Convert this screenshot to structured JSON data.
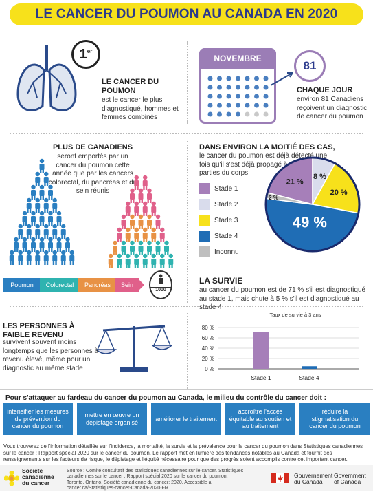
{
  "title": "LE CANCER DU POUMON AU CANADA EN 2020",
  "rank": {
    "number": "1",
    "sup": "er"
  },
  "rank_heading": "LE CANCER DU POUMON",
  "rank_text": "est le cancer le plus diagnostiqué, hommes et femmes combinés",
  "calendar": {
    "month": "NOVEMBRE",
    "count": "81"
  },
  "daily_heading": "CHAQUE JOUR",
  "daily_text": "environ 81 Canadiens reçoivent un diagnostic de cancer du poumon",
  "deaths_heading": "PLUS DE CANADIENS",
  "deaths_text": "seront emportés par un cancer du poumon cette année que par les cancers colorectal, du pancréas et du sein réunis",
  "compare_labels": [
    "Poumon",
    "Colorectal",
    "Pancréas",
    "Sein"
  ],
  "person_scale": "1000",
  "stage_heading": "DANS ENVIRON LA MOITIÉ DES CAS,",
  "stage_text": "le cancer du poumon est déjà détecté une fois qu'il s'est déjà propagé à d'autres parties du corps",
  "survival_heading": "LA SURVIE",
  "survival_text": "au cancer du poumon est de 71 % s'il est diagnostiqué au stade 1, mais chute à 5 % s'il est diagnostiqué au stade 4",
  "income_heading": "LES PERSONNES À FAIBLE REVENU",
  "income_text": "survivent souvent moins longtemps que les personnes à revenu élevé, même pour un diagnostic au même stade",
  "actions_intro": "Pour s'attaquer au fardeau du cancer du poumon au Canada, le milieu du contrôle du cancer doit :",
  "actions": [
    "intensifier les mesures de prévention du cancer du poumon",
    "mettre en œuvre un dépistage organisé",
    "améliorer le traitement",
    "accroître l'accès équitable au soutien et au traitement",
    "réduire la stigmatisation du cancer du poumon"
  ],
  "footer_text": "Vous trouverez de l'information détaillée sur l'incidence, la mortalité, la survie et la prévalence pour le cancer du poumon dans Statistiques canadiennes sur le cancer : Rapport spécial 2020 sur le cancer du poumon. Le rapport met en lumière des tendances notables au Canada et fournit des renseignements sur les facteurs de risque, le dépistage et l'équité nécessaire pour que des progrès soient accomplis contre cet important cancer.",
  "source_text": "Source : Comité consultatif des statistiques canadiennes sur le cancer. Statistiques canadiennes sur le cancer : Rapport spécial 2020 sur le cancer du poumon. Toronto, Ontario. Société canadienne du cancer; 2020. Accessible à cancer.ca/Statistiques-cancer-Canada-2020-FR.",
  "society_name": [
    "Société",
    "canadienne",
    "du cancer"
  ],
  "gov_fr": [
    "Gouvernement",
    "du Canada"
  ],
  "gov_en": [
    "Government",
    "of Canada"
  ],
  "colors": {
    "stade1": "#a67fb9",
    "stade2": "#d9dcec",
    "stade3": "#f7e11b",
    "stade4": "#1f6db5",
    "inconnu": "#bfbfbf",
    "title_bg": "#f7e11b",
    "navy": "#2b3a8c"
  },
  "chart_data": [
    {
      "type": "pie",
      "categories": [
        "Stade 1",
        "Stade 2",
        "Stade 3",
        "Stade 4",
        "Inconnu"
      ],
      "values": [
        21,
        8,
        20,
        49,
        2
      ],
      "data_labels": [
        "21 %",
        "8 %",
        "20 %",
        "49 %",
        "2 %"
      ],
      "legend": "left"
    },
    {
      "type": "bar",
      "title": "Taux de survie à 3 ans",
      "categories": [
        "Stade 1",
        "Stade 4"
      ],
      "values": [
        71,
        5
      ],
      "yticks": [
        "0 %",
        "20 %",
        "40 %",
        "60 %",
        "80 %"
      ],
      "ylim": [
        0,
        80
      ]
    }
  ]
}
